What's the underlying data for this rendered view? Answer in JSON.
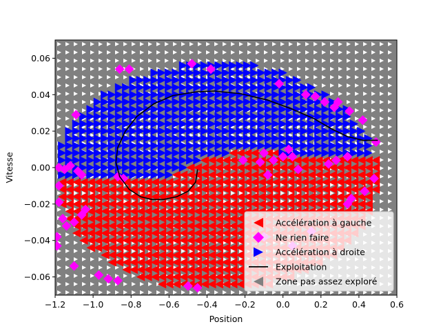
{
  "chart_data": {
    "type": "scatter",
    "title": "",
    "xlabel": "Position",
    "ylabel": "Vitesse",
    "xlim": [
      -1.2,
      0.6
    ],
    "ylim": [
      -0.07,
      0.07
    ],
    "x_ticks": [
      -1.2,
      -1.0,
      -0.8,
      -0.6,
      -0.4,
      -0.2,
      0.0,
      0.2,
      0.4,
      0.6
    ],
    "x_tick_labels": [
      "−1.2",
      "−1.0",
      "−0.8",
      "−0.6",
      "−0.4",
      "−0.2",
      "0.0",
      "0.2",
      "0.4",
      "0.6"
    ],
    "y_ticks": [
      -0.06,
      -0.04,
      -0.02,
      0.0,
      0.02,
      0.04,
      0.06
    ],
    "y_tick_labels": [
      "−0.06",
      "−0.04",
      "−0.02",
      "0.00",
      "0.02",
      "0.04",
      "0.06"
    ],
    "grid": false,
    "legend_position": "lower-right",
    "legend": [
      {
        "label": "Accélération à gauche",
        "marker": "triangle-left",
        "color": "#ff0000"
      },
      {
        "label": "Ne rien faire",
        "marker": "diamond",
        "color": "#ff00ff"
      },
      {
        "label": "Accélération à droite",
        "marker": "triangle-right",
        "color": "#0000ff"
      },
      {
        "label": "Exploitation",
        "marker": "line",
        "color": "#000000"
      },
      {
        "label": "Zone pas assez exploré",
        "marker": "triangle-left",
        "color": "#808080"
      }
    ],
    "background_zone": {
      "name": "Zone pas assez exploré",
      "color": "#808080",
      "glyph_color": "#ffffff"
    },
    "policy_regions": {
      "explored_ellipse": {
        "center_x": -0.35,
        "center_y": -0.005,
        "radius_x": 0.85,
        "radius_y": 0.063
      },
      "boundary_points": [
        [
          -1.2,
          -0.005
        ],
        [
          -1.0,
          -0.006
        ],
        [
          -0.8,
          -0.006
        ],
        [
          -0.6,
          -0.004
        ],
        [
          -0.4,
          0.006
        ],
        [
          -0.2,
          0.01
        ],
        [
          0.0,
          0.008
        ],
        [
          0.2,
          0.005
        ],
        [
          0.5,
          0.008
        ]
      ],
      "above_boundary": "Accélération à droite",
      "below_boundary": "Accélération à gauche",
      "grid_step_x": 0.0375,
      "grid_step_y": 0.004,
      "ne_rien_faire_points": [
        [
          -0.86,
          0.054
        ],
        [
          -0.81,
          0.054
        ],
        [
          -0.48,
          0.057
        ],
        [
          -0.38,
          0.054
        ],
        [
          -0.02,
          0.046
        ],
        [
          0.12,
          0.04
        ],
        [
          0.17,
          0.039
        ],
        [
          0.22,
          0.036
        ],
        [
          0.27,
          0.033
        ],
        [
          0.29,
          0.036
        ],
        [
          0.35,
          0.031
        ],
        [
          0.42,
          0.026
        ],
        [
          0.49,
          0.014
        ],
        [
          -1.09,
          0.029
        ],
        [
          -1.18,
          0.0
        ],
        [
          -1.15,
          -0.001
        ],
        [
          -1.12,
          0.001
        ],
        [
          -1.08,
          -0.002
        ],
        [
          -1.06,
          -0.004
        ],
        [
          -0.87,
          -0.005
        ],
        [
          -0.84,
          -0.006
        ],
        [
          -0.21,
          0.004
        ],
        [
          -0.12,
          0.003
        ],
        [
          -0.1,
          0.008
        ],
        [
          -0.08,
          -0.004
        ],
        [
          -0.05,
          0.004
        ],
        [
          0.0,
          0.006
        ],
        [
          0.03,
          0.01
        ],
        [
          0.05,
          0.006
        ],
        [
          0.08,
          -0.001
        ],
        [
          0.24,
          0.002
        ],
        [
          0.28,
          0.004
        ],
        [
          0.34,
          0.006
        ],
        [
          0.48,
          -0.006
        ],
        [
          0.43,
          -0.013
        ],
        [
          0.36,
          -0.017
        ],
        [
          0.34,
          -0.02
        ],
        [
          -1.18,
          -0.01
        ],
        [
          -1.18,
          -0.019
        ],
        [
          -1.16,
          -0.028
        ],
        [
          -1.14,
          -0.032
        ],
        [
          -1.1,
          -0.03
        ],
        [
          -1.06,
          -0.026
        ],
        [
          -1.04,
          -0.023
        ],
        [
          -1.19,
          -0.038
        ],
        [
          -1.19,
          -0.043
        ],
        [
          -1.1,
          -0.054
        ],
        [
          -0.97,
          -0.059
        ],
        [
          -0.92,
          -0.061
        ],
        [
          -0.87,
          -0.062
        ],
        [
          -0.5,
          -0.065
        ],
        [
          -0.45,
          -0.066
        ],
        [
          -0.1,
          -0.038
        ],
        [
          0.05,
          -0.043
        ],
        [
          0.15,
          -0.035
        ]
      ]
    },
    "exploitation_line": {
      "name": "Exploitation",
      "points": [
        [
          -0.45,
          -0.001
        ],
        [
          -0.46,
          -0.008
        ],
        [
          -0.5,
          -0.013
        ],
        [
          -0.56,
          -0.016
        ],
        [
          -0.63,
          -0.0175
        ],
        [
          -0.69,
          -0.0175
        ],
        [
          -0.75,
          -0.016
        ],
        [
          -0.81,
          -0.012
        ],
        [
          -0.86,
          -0.005
        ],
        [
          -0.88,
          0.003
        ],
        [
          -0.87,
          0.011
        ],
        [
          -0.83,
          0.02
        ],
        [
          -0.77,
          0.028
        ],
        [
          -0.68,
          0.035
        ],
        [
          -0.58,
          0.0395
        ],
        [
          -0.46,
          0.0415
        ],
        [
          -0.36,
          0.042
        ],
        [
          -0.22,
          0.0405
        ],
        [
          -0.08,
          0.037
        ],
        [
          0.05,
          0.032
        ],
        [
          0.16,
          0.027
        ],
        [
          0.26,
          0.021
        ],
        [
          0.34,
          0.017
        ],
        [
          0.42,
          0.015
        ],
        [
          0.5,
          0.015
        ]
      ]
    }
  }
}
